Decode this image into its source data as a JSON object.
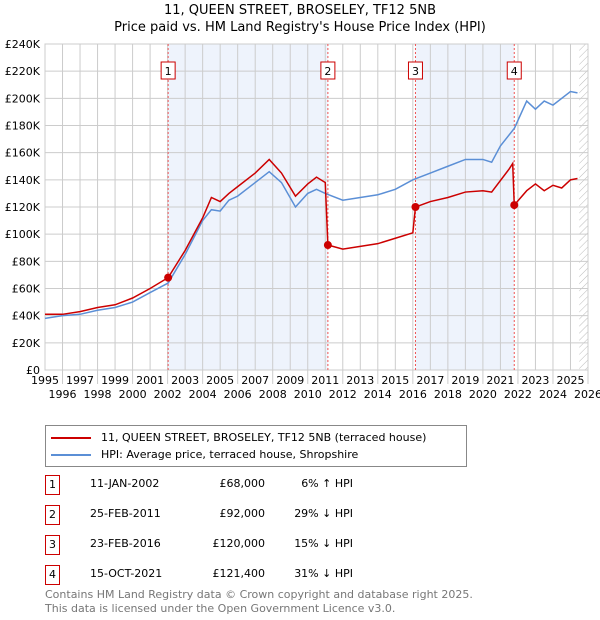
{
  "chart_data": {
    "type": "line",
    "title": "11, QUEEN STREET, BROSELEY, TF12 5NB",
    "subtitle": "Price paid vs. HM Land Registry's House Price Index (HPI)",
    "xlim": [
      1995,
      2026
    ],
    "ylim": [
      0,
      240000
    ],
    "x_ticks": [
      "1995",
      "1996",
      "1997",
      "1998",
      "1999",
      "2000",
      "2001",
      "2002",
      "2003",
      "2004",
      "2005",
      "2006",
      "2007",
      "2008",
      "2009",
      "2010",
      "2011",
      "2012",
      "2013",
      "2014",
      "2015",
      "2016",
      "2017",
      "2018",
      "2019",
      "2020",
      "2021",
      "2022",
      "2023",
      "2024",
      "2025",
      "2026"
    ],
    "y_ticks": [
      {
        "v": 0,
        "l": "£0"
      },
      {
        "v": 20000,
        "l": "£20K"
      },
      {
        "v": 40000,
        "l": "£40K"
      },
      {
        "v": 60000,
        "l": "£60K"
      },
      {
        "v": 80000,
        "l": "£80K"
      },
      {
        "v": 100000,
        "l": "£100K"
      },
      {
        "v": 120000,
        "l": "£120K"
      },
      {
        "v": 140000,
        "l": "£140K"
      },
      {
        "v": 160000,
        "l": "£160K"
      },
      {
        "v": 180000,
        "l": "£180K"
      },
      {
        "v": 200000,
        "l": "£200K"
      },
      {
        "v": 220000,
        "l": "£220K"
      },
      {
        "v": 240000,
        "l": "£240K"
      }
    ],
    "grid": true,
    "forecast_from": 2025.5,
    "series": [
      {
        "name": "11, QUEEN STREET, BROSELEY, TF12 5NB (terraced house)",
        "color": "#cc0000",
        "points": [
          [
            1995,
            41000
          ],
          [
            1996,
            41000
          ],
          [
            1997,
            43000
          ],
          [
            1998,
            46000
          ],
          [
            1999,
            48000
          ],
          [
            2000,
            53000
          ],
          [
            2001,
            60000
          ],
          [
            2002.03,
            68000
          ],
          [
            2003,
            88000
          ],
          [
            2004,
            112000
          ],
          [
            2004.5,
            127000
          ],
          [
            2005,
            124000
          ],
          [
            2005.5,
            130000
          ],
          [
            2006,
            135000
          ],
          [
            2007,
            145000
          ],
          [
            2007.8,
            155000
          ],
          [
            2008.5,
            145000
          ],
          [
            2009.3,
            128000
          ],
          [
            2010,
            137000
          ],
          [
            2010.5,
            142000
          ],
          [
            2011.0,
            138000
          ],
          [
            2011.15,
            92000
          ],
          [
            2012,
            89000
          ],
          [
            2013,
            91000
          ],
          [
            2014,
            93000
          ],
          [
            2015,
            97000
          ],
          [
            2016.0,
            101000
          ],
          [
            2016.15,
            120000
          ],
          [
            2017,
            124000
          ],
          [
            2018,
            127000
          ],
          [
            2019,
            131000
          ],
          [
            2020,
            132000
          ],
          [
            2020.5,
            131000
          ],
          [
            2021.5,
            148000
          ],
          [
            2021.7,
            152000
          ],
          [
            2021.79,
            121400
          ],
          [
            2022.5,
            132000
          ],
          [
            2023,
            137000
          ],
          [
            2023.5,
            132000
          ],
          [
            2024,
            136000
          ],
          [
            2024.5,
            134000
          ],
          [
            2025,
            140000
          ],
          [
            2025.4,
            141000
          ]
        ]
      },
      {
        "name": "HPI: Average price, terraced house, Shropshire",
        "color": "#5b8fd6",
        "points": [
          [
            1995,
            38000
          ],
          [
            1996,
            40000
          ],
          [
            1997,
            41000
          ],
          [
            1998,
            44000
          ],
          [
            1999,
            46000
          ],
          [
            2000,
            50000
          ],
          [
            2001,
            57000
          ],
          [
            2002.03,
            64000
          ],
          [
            2003,
            85000
          ],
          [
            2004,
            110000
          ],
          [
            2004.5,
            118000
          ],
          [
            2005,
            117000
          ],
          [
            2005.5,
            125000
          ],
          [
            2006,
            128000
          ],
          [
            2007,
            138000
          ],
          [
            2007.8,
            146000
          ],
          [
            2008.5,
            138000
          ],
          [
            2009.3,
            120000
          ],
          [
            2010,
            130000
          ],
          [
            2010.5,
            133000
          ],
          [
            2011,
            130000
          ],
          [
            2012,
            125000
          ],
          [
            2013,
            127000
          ],
          [
            2014,
            129000
          ],
          [
            2015,
            133000
          ],
          [
            2016,
            140000
          ],
          [
            2017,
            145000
          ],
          [
            2018,
            150000
          ],
          [
            2019,
            155000
          ],
          [
            2020,
            155000
          ],
          [
            2020.5,
            153000
          ],
          [
            2021,
            165000
          ],
          [
            2021.8,
            178000
          ],
          [
            2022.5,
            198000
          ],
          [
            2023,
            192000
          ],
          [
            2023.5,
            198000
          ],
          [
            2024,
            195000
          ],
          [
            2025,
            205000
          ],
          [
            2025.4,
            204000
          ]
        ]
      }
    ],
    "sales": [
      {
        "n": "1",
        "x": 2002.03,
        "y": 68000,
        "date": "11-JAN-2002",
        "price": "£68,000",
        "hpi": "6% ↑ HPI"
      },
      {
        "n": "2",
        "x": 2011.15,
        "y": 92000,
        "date": "25-FEB-2011",
        "price": "£92,000",
        "hpi": "29% ↓ HPI"
      },
      {
        "n": "3",
        "x": 2016.15,
        "y": 120000,
        "date": "23-FEB-2016",
        "price": "£120,000",
        "hpi": "15% ↓ HPI"
      },
      {
        "n": "4",
        "x": 2021.79,
        "y": 121400,
        "date": "15-OCT-2021",
        "price": "£121,400",
        "hpi": "31% ↓ HPI"
      }
    ],
    "shaded": [
      [
        2002.03,
        2011.15
      ],
      [
        2016.15,
        2021.79
      ]
    ]
  },
  "legend": {
    "property": "11, QUEEN STREET, BROSELEY, TF12 5NB (terraced house)",
    "hpi": "HPI: Average price, terraced house, Shropshire"
  },
  "footer": {
    "line1": "Contains HM Land Registry data © Crown copyright and database right 2025.",
    "line2": "This data is licensed under the Open Government Licence v3.0."
  }
}
